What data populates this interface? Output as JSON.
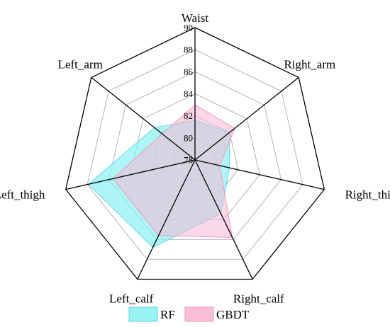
{
  "chart_data": {
    "type": "radar",
    "title": "",
    "axes": [
      "Waist",
      "Right_arm",
      "Right_thigh",
      "Right_calf",
      "Left_calf",
      "Left_thigh",
      "Left_arm"
    ],
    "range": [
      78,
      90
    ],
    "ticks": [
      78,
      80,
      82,
      84,
      86,
      88,
      90
    ],
    "tick_labels": [
      "78",
      "80",
      "82",
      "84",
      "86",
      "88",
      "90"
    ],
    "grid": true,
    "legend_position": "bottom",
    "series": [
      {
        "name": "RF",
        "values": [
          81.6,
          82.0,
          81.2,
          83.4,
          86.8,
          87.9,
          82.7
        ],
        "fill": "#8ff2f2",
        "stroke": "#67d6e6"
      },
      {
        "name": "GBDT",
        "values": [
          83.0,
          82.6,
          80.3,
          85.8,
          85.6,
          85.6,
          81.8
        ],
        "fill": "#f8b8d4",
        "stroke": "#ec98bc"
      }
    ]
  },
  "colors": {
    "grid": "#b3b3b3",
    "spoke": "#000000",
    "outline": "#000000"
  }
}
